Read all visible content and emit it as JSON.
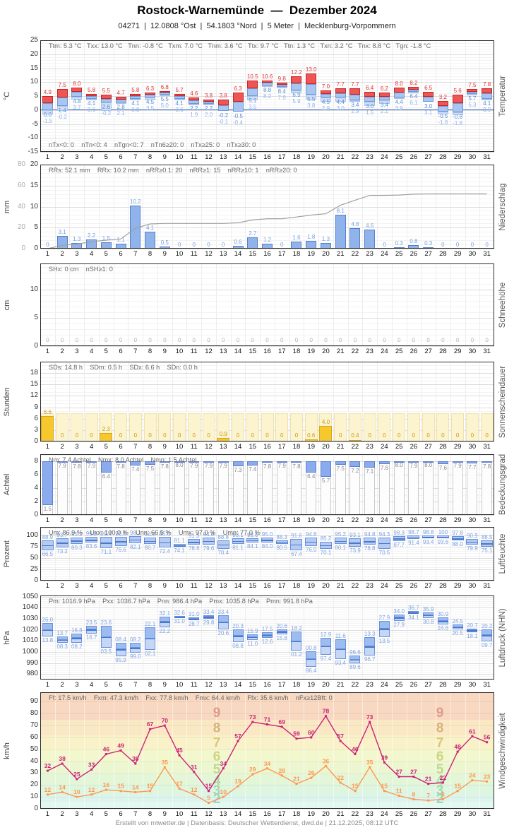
{
  "header": {
    "title": "Rostock-Warnemünde  —  Dezember 2024",
    "subtitle": "04271  |  12.0808 °Ost  |  54.1803 °Nord  |  5 Meter  |  Mecklenburg-Vorpommern"
  },
  "footer": {
    "credit": "Erstellt von mtwetter.de | Datenbasis: Deutscher Wetterdienst, dwd.de | 21.12.2025, 08:12 UTC"
  },
  "days": [
    1,
    2,
    3,
    4,
    5,
    6,
    7,
    8,
    9,
    10,
    11,
    12,
    13,
    14,
    15,
    16,
    17,
    18,
    19,
    20,
    21,
    22,
    23,
    24,
    25,
    26,
    27,
    28,
    29,
    30,
    31
  ],
  "chart_data": [
    {
      "id": "temperature",
      "type": "bar",
      "axis_right_label": "Temperatur",
      "axis_left_unit": "°C",
      "ylim": [
        -15,
        25
      ],
      "yticks": [
        25,
        20,
        15,
        10,
        5,
        0,
        -5,
        -10,
        -15
      ],
      "stats_top": [
        "Ttm: 5.3 °C",
        "Txx: 13.0 °C",
        "Tnn: -0.8 °C",
        "Txm: 7.0 °C",
        "Tnm: 3.6 °C",
        "Ttx: 9.7 °C",
        "Ttn: 1.3 °C",
        "Txn: 3.2 °C",
        "Tnx: 8.8 °C",
        "Tgn: -1.8 °C"
      ],
      "stats_bottom": [
        "nTx<0: 0",
        "nTn<0: 4",
        "nTgn<0: 7",
        "nTn6≥20: 0",
        "nTx≥25: 0",
        "nTx≥30: 0"
      ],
      "colors": {
        "max_bar": "#ee5555",
        "max_border": "#cc2222",
        "min_bar": "#a8c6f0",
        "min_border": "#6f97d8",
        "ground_bar": "#cfdef7",
        "ground_border": "#a9c2ea",
        "max_label": "#e03333",
        "min_label": "#5b8dd6",
        "ground_label": "#8fb4e8",
        "zero_line": "#3366cc"
      },
      "series": [
        {
          "name": "Tx Tagesmaximum",
          "values": [
            4.9,
            7.5,
            8.0,
            5.8,
            5.5,
            4.7,
            5.8,
            6.3,
            6.8,
            5.7,
            4.6,
            3.8,
            3.8,
            6.3,
            10.5,
            10.6,
            9.8,
            12.2,
            13.0,
            7.0,
            7.7,
            7.7,
            6.4,
            6.2,
            8.0,
            8.2,
            6.5,
            3.2,
            5.6,
            7.5,
            7.8
          ]
        },
        {
          "name": "Tn Tagesminimum",
          "values": [
            0.0,
            1.4,
            4.8,
            4.1,
            2.6,
            2.8,
            4.1,
            4.5,
            5.5,
            4.1,
            2.2,
            2.2,
            -0.2,
            -0.5,
            5.1,
            8.8,
            8.4,
            6.9,
            5.5,
            4.5,
            4.4,
            3.4,
            3.0,
            3.4,
            4.4,
            6.4,
            3.0,
            -0.5,
            -0.8,
            5.7,
            4.1
          ]
        },
        {
          "name": "Tg Erdbodenminimum",
          "values": [
            -1.5,
            -0.2,
            3.7,
            3.6,
            -0.2,
            2.1,
            3.8,
            3.5,
            5.0,
            3.6,
            1.9,
            2.0,
            -0.1,
            -0.4,
            3.5,
            8.2,
            7.9,
            5.9,
            3.8,
            2.9,
            3.0,
            2.9,
            1.5,
            2.1,
            3.9,
            6.1,
            3.1,
            -1.6,
            -1.8,
            5.3,
            3.9
          ]
        }
      ]
    },
    {
      "id": "precipitation",
      "type": "bar",
      "axis_right_label": "Niederschlag",
      "axis_left_unit": "mm",
      "ylim": [
        0,
        20
      ],
      "yticks": [
        20,
        15,
        10,
        5,
        0
      ],
      "y2lim": [
        0,
        80
      ],
      "y2ticks": [
        80,
        60,
        40,
        20,
        0
      ],
      "stats": [
        "RRs: 52.1 mm",
        "RRx: 10.2 mm",
        "nRR≥0.1: 20",
        "nRR≥1: 15",
        "nRR≥10: 1",
        "nRR≥20: 0"
      ],
      "colors": {
        "bar": "#8fb3ea",
        "bar_border": "#5580c8",
        "label": "#7aa0dd",
        "cumulative_line": "#a0a0a0"
      },
      "series": [
        {
          "name": "RR Tagessumme",
          "values": [
            0,
            3.1,
            1.3,
            2.2,
            1.5,
            1.1,
            10.2,
            4.1,
            0.5,
            0,
            0,
            0,
            0,
            0.6,
            2.7,
            1.2,
            0,
            1.6,
            1.8,
            1.3,
            8.1,
            4.8,
            4.6,
            0,
            0.3,
            0.8,
            0.3,
            0,
            0,
            0,
            0
          ]
        },
        {
          "name": "kumulierte Monatssumme",
          "derived": "cumsum"
        }
      ]
    },
    {
      "id": "snow",
      "type": "bar",
      "axis_right_label": "Schneehöhe",
      "axis_left_unit": "cm",
      "ylim": [
        0,
        14.6
      ],
      "yticks": [
        10,
        5,
        0
      ],
      "stats": [
        "SHx: 0 cm",
        "nSH≥1: 0"
      ],
      "colors": {
        "label": "#b5b5b5"
      },
      "series": [
        {
          "name": "SH Schneehöhe",
          "values": [
            0,
            0,
            0,
            0,
            0,
            0,
            0,
            0,
            0,
            0,
            0,
            0,
            0,
            0,
            0,
            0,
            0,
            0,
            0,
            0,
            0,
            0,
            0,
            0,
            0,
            0,
            0,
            0,
            0,
            0,
            0
          ]
        }
      ]
    },
    {
      "id": "sunshine",
      "type": "bar",
      "axis_right_label": "Sonnenscheindauer",
      "axis_left_unit": "Stunden",
      "ylim": [
        0,
        21
      ],
      "yticks": [
        18,
        15,
        12,
        9,
        6,
        3,
        0
      ],
      "stats": [
        "SDs: 14.8 h",
        "SDm: 0.5 h",
        "SDx: 6.6 h",
        "SDn: 0.0 h"
      ],
      "possible_hours": 7.5,
      "colors": {
        "bar": "#f7c72e",
        "bar_border": "#dca60f",
        "label": "#c9991a",
        "possible_bar": "#fcf4cf",
        "possible_border": "#f0e2ac"
      },
      "series": [
        {
          "name": "SD Sonnenscheindauer",
          "values": [
            6.6,
            0,
            0,
            0,
            2.3,
            0,
            0,
            0,
            0,
            0,
            0,
            0,
            0.9,
            0,
            0,
            0,
            0,
            0,
            0.6,
            4.0,
            0,
            0.4,
            0,
            0,
            0,
            0,
            0,
            0,
            0,
            0,
            0
          ]
        }
      ]
    },
    {
      "id": "cloud_cover",
      "type": "bar",
      "axis_right_label": "Bedeckungsgrad",
      "axis_left_unit": "Achtel",
      "ylim": [
        0,
        9.1
      ],
      "yticks": [
        8,
        6,
        4,
        2,
        0
      ],
      "full_scale": 8,
      "stats": [
        "Nm: 7.4 Achtel",
        "Nmx: 8.0 Achtel",
        "Nmn: 1.5 Achtel"
      ],
      "colors": {
        "bar": "#8aabee",
        "bar_border": "#5b7fd0",
        "frame": "#c9c9c9",
        "label": "#8a8a8a"
      },
      "series": [
        {
          "name": "Nm Tagesmittel",
          "values": [
            1.5,
            7.9,
            7.8,
            7.9,
            6.4,
            7.8,
            7.4,
            7.5,
            7.8,
            8.0,
            7.9,
            7.9,
            7.9,
            7.3,
            7.4,
            7.8,
            7.9,
            7.8,
            6.4,
            5.7,
            7.5,
            7.2,
            7.1,
            7.6,
            8.0,
            7.9,
            8.0,
            7.6,
            7.9,
            7.7,
            7.8
          ]
        }
      ]
    },
    {
      "id": "humidity",
      "type": "bar",
      "axis_right_label": "Luftfeuchte",
      "axis_left_unit": "Prozent",
      "ylim": [
        0,
        118
      ],
      "yticks": [
        100,
        75,
        50,
        25,
        0
      ],
      "stats": [
        "Um: 86.9 %",
        "Uxx: 100.0 %",
        "Unn: 66.5 %",
        "Umx: 97.0 %",
        "Umn: 77.0 %"
      ],
      "colors": {
        "bar": "#b5cbf2",
        "bar_border": "#6a92dd",
        "mid_line": "#4a78d0",
        "label": "#7fa3e0"
      },
      "series": [
        {
          "name": "Ux Tagesmaximum",
          "values": [
            88.9,
            93.7,
            95.2,
            96.0,
            96.4,
            96.6,
            98.1,
            94.5,
            95.6,
            81.1,
            91.3,
            94.8,
            88.8,
            93.1,
            93.6,
            95.0,
            88.3,
            91.6,
            94.8,
            85.2,
            95.2,
            93.1,
            94.8,
            94.3,
            98.3,
            98.7,
            98.8,
            100,
            97.8,
            90.9,
            88.5
          ]
        },
        {
          "name": "Un Tagesminimum",
          "values": [
            66.5,
            73.2,
            80.3,
            83.6,
            71.1,
            76.6,
            82.1,
            80.7,
            72.4,
            74.1,
            78.6,
            79.6,
            70.4,
            81.1,
            84.1,
            84.0,
            80.5,
            67.4,
            76.0,
            70.1,
            80.1,
            73.9,
            78.8,
            70.5,
            87.7,
            91.4,
            93.4,
            93.6,
            88.0,
            79.9,
            75.1
          ]
        }
      ]
    },
    {
      "id": "pressure",
      "type": "bar",
      "axis_right_label": "Luftdruck (NHN)",
      "axis_left_unit": "hPa",
      "ylim": [
        975,
        1051
      ],
      "yticks": [
        1050,
        1040,
        1030,
        1020,
        1010,
        1000,
        990,
        980
      ],
      "stats": [
        "Pm: 1016.9 hPa",
        "Pxx: 1036.7 hPa",
        "Pnn: 986.4 hPa",
        "Pmx: 1035.8 hPa",
        "Pmn: 991.8 hPa"
      ],
      "colors": {
        "upper_bar": "#9dbdf0",
        "lower_bar": "#c5d7f5",
        "bar_border": "#6a92dd",
        "mid_line": "#4a78d0",
        "label": "#7fa3e0"
      },
      "series": [
        {
          "name": "Px Tagesmaximum",
          "values": [
            1026.0,
            1013.7,
            1016.8,
            1023.5,
            1023.6,
            1008.4,
            1008.2,
            1022.1,
            1032.1,
            1032.6,
            1031.0,
            1033.4,
            1033.4,
            1020.3,
            1015.9,
            1017.5,
            1020.6,
            1018.2,
            1000.8,
            1012.9,
            1011.6,
            996.6,
            1013.3,
            1027.9,
            1034.0,
            1036.7,
            1035.9,
            1030.9,
            1024.5,
            1020.7,
            1020.2
          ]
        },
        {
          "name": "Pn Tagesminimum",
          "values": [
            1013.8,
            1008.3,
            1008.2,
            1016.7,
            1003.5,
            995.9,
            999.0,
            1002.1,
            1022.2,
            1031.0,
            1028.7,
            1029.8,
            1020.6,
            1008.8,
            1011.0,
            1012.6,
            1015.8,
            1001.2,
            986.4,
            997.4,
            993.4,
            989.6,
            996.7,
            1013.5,
            1027.9,
            1034.1,
            1030.8,
            1024.6,
            1020.5,
            1018.1,
            1009.7
          ]
        }
      ]
    },
    {
      "id": "wind",
      "type": "line",
      "axis_right_label": "Windgeschwindigkeit",
      "axis_left_unit": "km/h",
      "ylim": [
        0,
        98
      ],
      "yticks": [
        90,
        80,
        70,
        60,
        50,
        40,
        30,
        20,
        10,
        0
      ],
      "stats": [
        "Ff: 17.5 km/h",
        "Fxm: 47.3 km/h",
        "Fxx: 77.8 km/h",
        "Fmx: 64.4 km/h",
        "Ffx: 35.6 km/h",
        "nFx≥12Bft: 0"
      ],
      "colors": {
        "gust_line": "#cc2277",
        "mean_line": "#ff9750"
      },
      "series": [
        {
          "name": "Fx Tagesmaximum Windspitze",
          "values": [
            32,
            38,
            25,
            33,
            46,
            49,
            38,
            67,
            70,
            45,
            31,
            15,
            34,
            57,
            73,
            71,
            69,
            59,
            60,
            78,
            57,
            46,
            73,
            39,
            27,
            27,
            21,
            22,
            48,
            61,
            56
          ]
        },
        {
          "name": "Ff Tagesmittel",
          "values": [
            12,
            14,
            10,
            12,
            16,
            15,
            14,
            15,
            35,
            17,
            12,
            5,
            10,
            19,
            29,
            34,
            28,
            21,
            26,
            36,
            22,
            15,
            35,
            15,
            11,
            8,
            7,
            8,
            15,
            24,
            23
          ]
        }
      ],
      "beaufort_bands": [
        {
          "bft": "",
          "from": 0,
          "to": 6,
          "color": "#e4f8f2",
          "text": ""
        },
        {
          "bft": "2",
          "from": 6,
          "to": 12,
          "color": "#dcf5ec",
          "text": "#8fd2c2"
        },
        {
          "bft": "3",
          "from": 12,
          "to": 20,
          "color": "#def5e0",
          "text": "#9cd3a4"
        },
        {
          "bft": "4",
          "from": 20,
          "to": 29,
          "color": "#e4f6d8",
          "text": "#a5d396"
        },
        {
          "bft": "5",
          "from": 29,
          "to": 39,
          "color": "#ecf7d2",
          "text": "#b8d385"
        },
        {
          "bft": "6",
          "from": 39,
          "to": 50,
          "color": "#f3f7cd",
          "text": "#c6cf78"
        },
        {
          "bft": "7",
          "from": 50,
          "to": 62,
          "color": "#f9f2c8",
          "text": "#d1c06e"
        },
        {
          "bft": "8",
          "from": 62,
          "to": 75,
          "color": "#fae8c4",
          "text": "#d4a96e"
        },
        {
          "bft": "9",
          "from": 75,
          "to": 98,
          "color": "#f8d8c0",
          "text": "#d99282"
        }
      ]
    }
  ]
}
